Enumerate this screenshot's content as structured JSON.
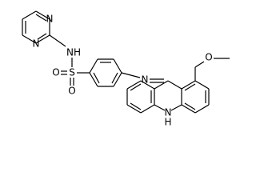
{
  "atoms": {
    "pyrimidine_n1": "N",
    "pyrimidine_n3": "N",
    "sulfonamide_nh": "NH",
    "sulfur": "S",
    "sulfonyl_o1": "O",
    "sulfonyl_o2": "O",
    "imine_n": "N",
    "methoxy_o": "O",
    "acridine_n": "N",
    "acridine_h": "H"
  }
}
